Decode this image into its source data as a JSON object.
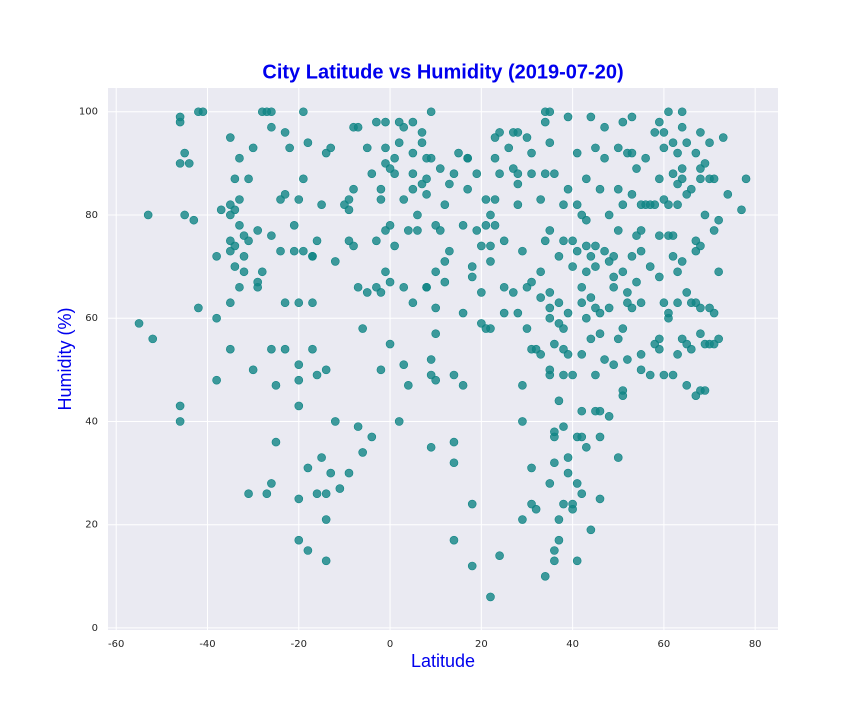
{
  "chart_data": {
    "type": "scatter",
    "title": "City Latitude vs Humidity (2019-07-20)",
    "x_label": "Latitude",
    "y_label": "Humidity (%)",
    "color": "#108585",
    "grid": true,
    "xlim": [
      -61.8,
      85
    ],
    "ylim": [
      -0.4,
      104.6
    ],
    "xticks": [
      -60,
      -40,
      -20,
      0,
      20,
      40,
      60,
      80
    ],
    "yticks": [
      0,
      20,
      40,
      60,
      80,
      100
    ],
    "x": [
      -55,
      -53,
      -52,
      -46,
      -46,
      -46,
      -46,
      -46,
      -45,
      -45,
      -44,
      -43,
      -42,
      -42,
      -41,
      -38,
      -38,
      -38,
      -37,
      -35,
      -35,
      -35,
      -35,
      -35,
      -35,
      -35,
      -34,
      -34,
      -34,
      -34,
      -33,
      -33,
      -33,
      -33,
      -32,
      -32,
      -32,
      -31,
      -31,
      -30,
      -31,
      -30,
      -29,
      -29,
      -29,
      -28,
      -28,
      -27,
      -26,
      -27,
      -26,
      -26,
      -26,
      -26,
      -25,
      -25,
      -24,
      -24,
      -23,
      -23,
      -23,
      -23,
      -22,
      -21,
      -21,
      -20,
      -20,
      -20,
      -20,
      -20,
      -20,
      -20,
      -19,
      -19,
      -19,
      -18,
      -18,
      -18,
      -17,
      -17,
      -17,
      -17,
      -16,
      -16,
      -16,
      -15,
      -15,
      -14,
      -14,
      -14,
      -14,
      -14,
      -13,
      -13,
      -12,
      -12,
      -11,
      -10,
      -9,
      -9,
      -9,
      -9,
      -8,
      -8,
      -8,
      -7,
      -7,
      -7,
      -6,
      -6,
      -5,
      -5,
      -4,
      -4,
      -3,
      -3,
      -3,
      -2,
      -2,
      -2,
      -2,
      -1,
      -1,
      -1,
      -1,
      -1,
      0,
      0,
      0,
      0,
      1,
      1,
      1,
      2,
      2,
      2,
      3,
      3,
      3,
      3,
      4,
      4,
      5,
      5,
      5,
      5,
      5,
      6,
      6,
      7,
      7,
      7,
      8,
      8,
      8,
      8,
      8,
      9,
      9,
      9,
      9,
      9,
      10,
      10,
      10,
      10,
      10,
      11,
      11,
      12,
      12,
      12,
      13,
      13,
      14,
      14,
      14,
      14,
      14,
      15,
      16,
      16,
      16,
      17,
      17,
      17,
      18,
      18,
      18,
      18,
      19,
      19,
      20,
      20,
      20,
      21,
      21,
      21,
      22,
      22,
      22,
      22,
      22,
      23,
      23,
      23,
      23,
      24,
      24,
      24,
      25,
      25,
      25,
      26,
      27,
      27,
      27,
      28,
      28,
      28,
      28,
      28,
      29,
      29,
      29,
      29,
      30,
      30,
      30,
      31,
      31,
      31,
      31,
      31,
      31,
      32,
      32,
      33,
      33,
      33,
      33,
      34,
      34,
      34,
      34,
      34,
      35,
      35,
      35,
      35,
      35,
      35,
      35,
      35,
      35,
      36,
      36,
      36,
      36,
      36,
      36,
      36,
      37,
      37,
      37,
      37,
      37,
      37,
      38,
      38,
      38,
      38,
      38,
      38,
      38,
      39,
      39,
      39,
      39,
      39,
      39,
      40,
      40,
      40,
      40,
      40,
      41,
      41,
      41,
      41,
      41,
      41,
      42,
      42,
      42,
      42,
      42,
      42,
      42,
      43,
      43,
      43,
      43,
      43,
      43,
      44,
      44,
      44,
      44,
      44,
      45,
      45,
      45,
      45,
      45,
      45,
      46,
      46,
      46,
      46,
      46,
      46,
      47,
      47,
      47,
      47,
      48,
      48,
      48,
      48,
      49,
      49,
      49,
      49,
      50,
      50,
      50,
      50,
      50,
      51,
      51,
      51,
      51,
      51,
      51,
      52,
      52,
      52,
      52,
      53,
      53,
      53,
      53,
      53,
      54,
      54,
      54,
      55,
      55,
      55,
      55,
      55,
      55,
      56,
      56,
      57,
      57,
      57,
      58,
      58,
      58,
      59,
      59,
      59,
      59,
      59,
      59,
      60,
      60,
      60,
      60,
      60,
      61,
      61,
      61,
      61,
      61,
      62,
      62,
      62,
      62,
      62,
      63,
      63,
      63,
      63,
      63,
      63,
      64,
      64,
      64,
      64,
      64,
      64,
      65,
      65,
      65,
      65,
      65,
      66,
      66,
      66,
      67,
      67,
      67,
      67,
      67,
      68,
      68,
      68,
      68,
      68,
      68,
      68,
      69,
      69,
      69,
      69,
      70,
      70,
      70,
      70,
      71,
      71,
      71,
      71,
      72,
      72,
      72,
      73,
      74,
      77,
      78
    ],
    "values": [
      59,
      80,
      56,
      98,
      99,
      90,
      40,
      43,
      92,
      80,
      90,
      79,
      62,
      100,
      100,
      72,
      60,
      48,
      81,
      95,
      82,
      80,
      75,
      73,
      63,
      54,
      87,
      81,
      74,
      70,
      83,
      78,
      66,
      91,
      76,
      72,
      69,
      87,
      75,
      93,
      26,
      50,
      77,
      67,
      66,
      100,
      69,
      100,
      100,
      26,
      97,
      76,
      54,
      28,
      36,
      47,
      83,
      73,
      96,
      84,
      63,
      54,
      93,
      78,
      73,
      83,
      63,
      51,
      48,
      43,
      25,
      17,
      100,
      87,
      73,
      94,
      31,
      15,
      72,
      72,
      63,
      54,
      75,
      49,
      26,
      82,
      33,
      92,
      50,
      26,
      21,
      13,
      93,
      30,
      71,
      40,
      27,
      82,
      75,
      30,
      81,
      83,
      85,
      74,
      97,
      66,
      39,
      97,
      34,
      58,
      93,
      65,
      88,
      37,
      98,
      66,
      75,
      83,
      65,
      85,
      50,
      93,
      98,
      90,
      69,
      77,
      78,
      67,
      55,
      89,
      91,
      74,
      88,
      94,
      40,
      98,
      83,
      66,
      97,
      51,
      47,
      77,
      85,
      88,
      92,
      63,
      98,
      77,
      80,
      94,
      96,
      86,
      91,
      87,
      66,
      84,
      66,
      52,
      49,
      100,
      91,
      35,
      48,
      78,
      69,
      57,
      62,
      77,
      89,
      71,
      82,
      67,
      86,
      73,
      32,
      49,
      36,
      17,
      88,
      92,
      47,
      78,
      61,
      91,
      91,
      85,
      70,
      68,
      12,
      24,
      88,
      77,
      74,
      59,
      65,
      58,
      83,
      78,
      71,
      80,
      74,
      58,
      6,
      91,
      83,
      95,
      78,
      96,
      88,
      14,
      66,
      75,
      61,
      93,
      65,
      96,
      89,
      96,
      86,
      88,
      82,
      61,
      73,
      21,
      47,
      40,
      95,
      58,
      66,
      92,
      88,
      67,
      54,
      31,
      24,
      23,
      54,
      83,
      64,
      69,
      53,
      98,
      100,
      88,
      75,
      10,
      77,
      62,
      60,
      94,
      65,
      100,
      50,
      49,
      28,
      88,
      55,
      38,
      37,
      32,
      15,
      13,
      72,
      63,
      59,
      44,
      21,
      17,
      82,
      75,
      58,
      54,
      49,
      39,
      24,
      99,
      85,
      61,
      53,
      30,
      33,
      75,
      70,
      49,
      24,
      23,
      92,
      82,
      73,
      37,
      28,
      13,
      80,
      66,
      63,
      53,
      42,
      37,
      26,
      87,
      79,
      74,
      69,
      60,
      35,
      72,
      64,
      56,
      19,
      99,
      93,
      74,
      70,
      62,
      49,
      42,
      85,
      61,
      57,
      42,
      37,
      25,
      97,
      91,
      73,
      52,
      71,
      80,
      62,
      41,
      72,
      68,
      66,
      51,
      85,
      77,
      56,
      33,
      93,
      98,
      82,
      69,
      58,
      45,
      46,
      92,
      65,
      63,
      52,
      84,
      99,
      92,
      72,
      62,
      89,
      76,
      67,
      82,
      77,
      73,
      63,
      53,
      50,
      91,
      82,
      82,
      70,
      49,
      96,
      82,
      55,
      98,
      87,
      76,
      68,
      56,
      54,
      96,
      93,
      83,
      63,
      49,
      100,
      82,
      76,
      60,
      61,
      94,
      88,
      72,
      76,
      49,
      92,
      86,
      82,
      69,
      63,
      53,
      100,
      97,
      89,
      87,
      71,
      56,
      94,
      84,
      65,
      55,
      47,
      85,
      63,
      54,
      92,
      75,
      73,
      63,
      45,
      96,
      89,
      87,
      74,
      62,
      57,
      46,
      90,
      80,
      55,
      46,
      94,
      87,
      62,
      55,
      87,
      77,
      61,
      55,
      79,
      69,
      56,
      95,
      84,
      81,
      87
    ]
  }
}
